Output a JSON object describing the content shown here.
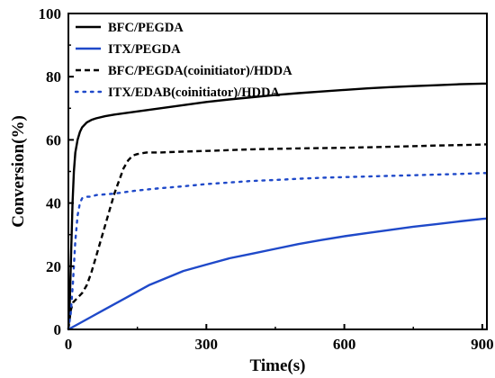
{
  "chart_data": {
    "type": "line",
    "xlabel": "Time(s)",
    "ylabel": "Conversion(%)",
    "xlim": [
      0,
      910
    ],
    "ylim": [
      0,
      100
    ],
    "xticks": [
      0,
      300,
      600,
      900
    ],
    "yticks": [
      0,
      20,
      40,
      60,
      80,
      100
    ],
    "grid": false,
    "legend_position": "top-left",
    "series": [
      {
        "name": "BFC/PEGDA",
        "color": "#000000",
        "style": "solid",
        "points": [
          [
            0,
            0
          ],
          [
            3,
            8
          ],
          [
            6,
            25
          ],
          [
            9,
            40
          ],
          [
            12,
            50
          ],
          [
            15,
            56
          ],
          [
            20,
            60
          ],
          [
            25,
            62.5
          ],
          [
            30,
            64
          ],
          [
            40,
            65.5
          ],
          [
            50,
            66.3
          ],
          [
            60,
            66.8
          ],
          [
            80,
            67.5
          ],
          [
            100,
            68
          ],
          [
            150,
            69
          ],
          [
            200,
            70
          ],
          [
            250,
            71
          ],
          [
            300,
            72
          ],
          [
            350,
            72.8
          ],
          [
            400,
            73.5
          ],
          [
            450,
            74.2
          ],
          [
            500,
            74.8
          ],
          [
            550,
            75.3
          ],
          [
            600,
            75.8
          ],
          [
            650,
            76.3
          ],
          [
            700,
            76.7
          ],
          [
            750,
            77
          ],
          [
            800,
            77.3
          ],
          [
            850,
            77.6
          ],
          [
            900,
            77.8
          ],
          [
            910,
            77.8
          ]
        ]
      },
      {
        "name": "ITX/PEGDA",
        "color": "#1f49c9",
        "style": "solid",
        "points": [
          [
            0,
            0
          ],
          [
            25,
            2
          ],
          [
            50,
            4
          ],
          [
            75,
            6
          ],
          [
            100,
            8
          ],
          [
            125,
            10
          ],
          [
            150,
            12
          ],
          [
            175,
            14
          ],
          [
            200,
            15.5
          ],
          [
            250,
            18.5
          ],
          [
            300,
            20.5
          ],
          [
            350,
            22.5
          ],
          [
            400,
            24
          ],
          [
            450,
            25.5
          ],
          [
            500,
            27
          ],
          [
            550,
            28.3
          ],
          [
            600,
            29.5
          ],
          [
            650,
            30.5
          ],
          [
            700,
            31.5
          ],
          [
            750,
            32.5
          ],
          [
            800,
            33.3
          ],
          [
            850,
            34.2
          ],
          [
            900,
            35
          ],
          [
            910,
            35.1
          ]
        ]
      },
      {
        "name": "BFC/PEGDA(coinitiator)/HDDA",
        "color": "#000000",
        "style": "dashed",
        "points": [
          [
            0,
            0
          ],
          [
            5,
            6
          ],
          [
            10,
            8.5
          ],
          [
            20,
            10
          ],
          [
            30,
            11.5
          ],
          [
            40,
            14
          ],
          [
            50,
            18
          ],
          [
            60,
            23
          ],
          [
            70,
            28
          ],
          [
            80,
            33
          ],
          [
            90,
            38
          ],
          [
            100,
            43
          ],
          [
            110,
            47
          ],
          [
            120,
            51
          ],
          [
            130,
            53.5
          ],
          [
            140,
            55
          ],
          [
            150,
            55.5
          ],
          [
            170,
            56
          ],
          [
            200,
            56
          ],
          [
            250,
            56.3
          ],
          [
            300,
            56.5
          ],
          [
            400,
            57
          ],
          [
            500,
            57.3
          ],
          [
            600,
            57.5
          ],
          [
            700,
            57.8
          ],
          [
            800,
            58.2
          ],
          [
            900,
            58.5
          ],
          [
            910,
            58.6
          ]
        ]
      },
      {
        "name": "ITX/EDAB(coinitiator)/HDDA",
        "color": "#1f49c9",
        "style": "dotted",
        "points": [
          [
            0,
            0
          ],
          [
            5,
            5
          ],
          [
            10,
            15
          ],
          [
            15,
            28
          ],
          [
            20,
            36
          ],
          [
            25,
            40
          ],
          [
            30,
            41.5
          ],
          [
            40,
            42
          ],
          [
            50,
            42
          ],
          [
            60,
            42.5
          ],
          [
            100,
            43
          ],
          [
            150,
            44
          ],
          [
            200,
            44.7
          ],
          [
            250,
            45.3
          ],
          [
            300,
            46
          ],
          [
            350,
            46.5
          ],
          [
            400,
            47
          ],
          [
            450,
            47.3
          ],
          [
            500,
            47.7
          ],
          [
            550,
            48
          ],
          [
            600,
            48.2
          ],
          [
            650,
            48.4
          ],
          [
            700,
            48.6
          ],
          [
            750,
            48.8
          ],
          [
            800,
            49
          ],
          [
            850,
            49.2
          ],
          [
            900,
            49.5
          ],
          [
            910,
            49.5
          ]
        ]
      }
    ]
  }
}
